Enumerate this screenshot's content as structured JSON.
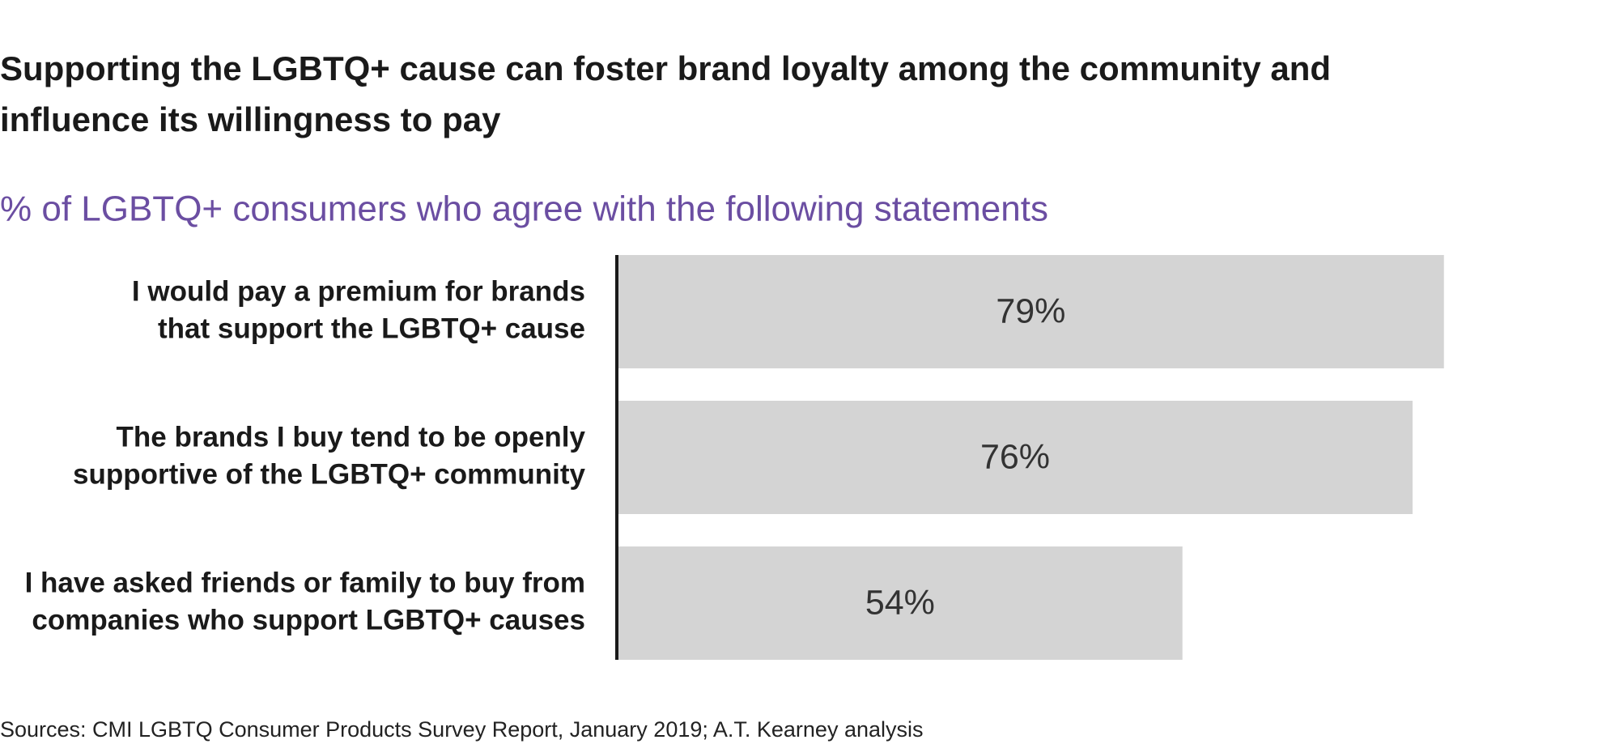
{
  "chart_data": {
    "type": "hbar",
    "title": [
      "Supporting the LGBTQ+ cause can foster brand loyalty among the community and",
      "influence its willingness to pay"
    ],
    "subtitle": "% of LGBTQ+ consumers who agree with the following statements",
    "categories": [
      [
        "I would pay a premium for brands",
        "that support the LGBTQ+ cause"
      ],
      [
        "The brands I buy tend to be openly",
        "supportive of the LGBTQ+ community"
      ],
      [
        "I have asked friends or family to buy from",
        "companies who support LGBTQ+ causes"
      ]
    ],
    "values": [
      79,
      76,
      54
    ],
    "value_labels": [
      "79%",
      "76%",
      "54%"
    ],
    "color": "#d4d4d4",
    "xlim": [
      0,
      100
    ],
    "source": "Sources: CMI LGBTQ Consumer Products Survey Report, January 2019; A.T. Kearney analysis"
  }
}
